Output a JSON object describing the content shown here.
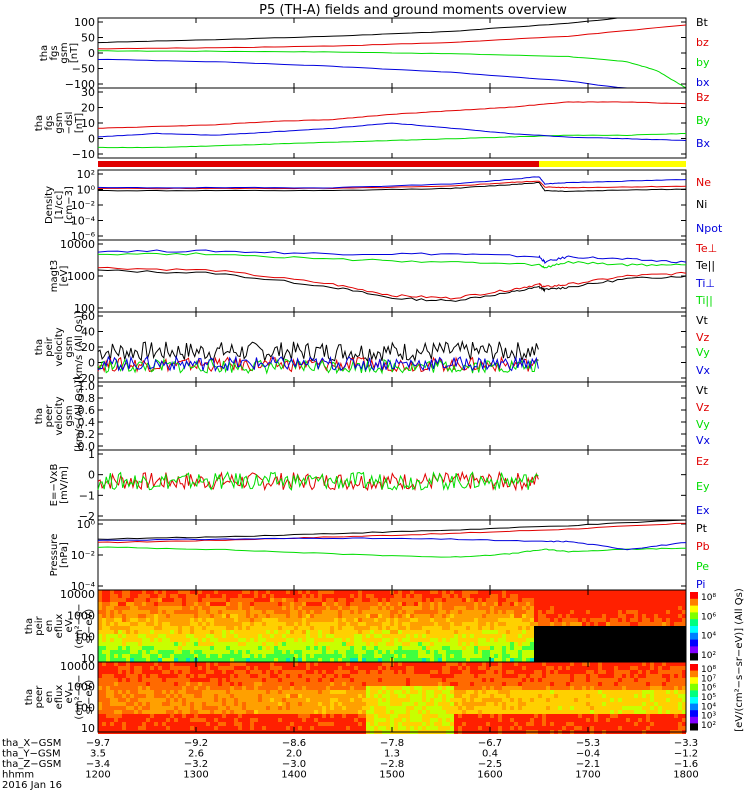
{
  "title": "P5 (TH-A) fields and ground moments overview",
  "colors": {
    "black": "#000000",
    "red": "#e00000",
    "green": "#00dd00",
    "blue": "#0000dd",
    "yellow": "#ffff00"
  },
  "chart_data": [
    {
      "type": "line",
      "panel": "fgs_gsm",
      "ylabel": [
        "tha",
        "fgs",
        "gsm",
        "[nT]"
      ],
      "yticks": [
        "100",
        "50",
        "0",
        "−50",
        "−100"
      ],
      "ylim": [
        -100,
        100
      ],
      "series": [
        {
          "name": "Bt",
          "color": "black",
          "x": [
            0,
            20,
            40,
            60,
            80,
            100
          ],
          "values": [
            30,
            38,
            48,
            62,
            85,
            120
          ]
        },
        {
          "name": "bz",
          "color": "red",
          "x": [
            0,
            20,
            40,
            60,
            80,
            100
          ],
          "values": [
            12,
            15,
            20,
            30,
            48,
            80
          ]
        },
        {
          "name": "by",
          "color": "green",
          "x": [
            0,
            20,
            40,
            60,
            80,
            90,
            95,
            100
          ],
          "values": [
            6,
            5,
            3,
            -2,
            -10,
            -25,
            -50,
            -100
          ]
        },
        {
          "name": "bx",
          "color": "blue",
          "x": [
            0,
            20,
            40,
            60,
            80,
            100
          ],
          "values": [
            -18,
            -25,
            -38,
            -55,
            -80,
            -125
          ]
        }
      ]
    },
    {
      "type": "line",
      "panel": "fgs_gsm_dsl",
      "ylabel": [
        "tha",
        "fgs",
        "gsm",
        "−dsl",
        "[nT]"
      ],
      "yticks": [
        "30",
        "20",
        "10",
        "0",
        "−10"
      ],
      "ylim": [
        -10,
        30
      ],
      "series": [
        {
          "name": "Bz",
          "color": "red",
          "x": [
            0,
            10,
            20,
            30,
            40,
            50,
            60,
            70,
            80,
            90,
            100
          ],
          "values": [
            7,
            8,
            9,
            11,
            12,
            15,
            17,
            19,
            22,
            22,
            21
          ]
        },
        {
          "name": "By",
          "color": "green",
          "x": [
            0,
            10,
            20,
            30,
            40,
            50,
            60,
            70,
            80,
            90,
            100
          ],
          "values": [
            -4,
            -4,
            -3,
            -2,
            -1,
            0,
            1,
            2,
            3,
            3,
            4
          ]
        },
        {
          "name": "Bx",
          "color": "blue",
          "x": [
            0,
            10,
            20,
            30,
            40,
            50,
            60,
            70,
            80,
            90,
            100
          ],
          "values": [
            2,
            4,
            3,
            5,
            7,
            10,
            7,
            4,
            2,
            1,
            0
          ]
        }
      ]
    },
    {
      "type": "line",
      "panel": "density",
      "ylabel": [
        "Density",
        "[1/cc]",
        "[cm−3]"
      ],
      "yticks": [
        "10²",
        "10⁰",
        "10⁻²",
        "10⁻⁴",
        "10⁻⁶"
      ],
      "yscale": "log",
      "ylim": [
        -7,
        2.5
      ],
      "series": [
        {
          "name": "Ne",
          "color": "red",
          "x": [
            0,
            20,
            40,
            60,
            70,
            75,
            76,
            80,
            90,
            100
          ],
          "values": [
            0,
            0,
            0,
            0.3,
            0.8,
            1.0,
            0.2,
            0.1,
            0.2,
            0.3
          ]
        },
        {
          "name": "Ni",
          "color": "black",
          "x": [
            0,
            20,
            40,
            60,
            70,
            75,
            76,
            80,
            90,
            100
          ],
          "values": [
            -0.3,
            -0.3,
            -0.3,
            0,
            0.5,
            0.8,
            -0.3,
            -0.4,
            -0.2,
            -0.1
          ]
        },
        {
          "name": "Npot",
          "color": "blue",
          "x": [
            0,
            20,
            40,
            60,
            70,
            75,
            76,
            80,
            90,
            100
          ],
          "values": [
            0.1,
            0.1,
            0.1,
            0.6,
            1.2,
            1.6,
            0.6,
            0.8,
            1.0,
            1.2
          ]
        }
      ]
    },
    {
      "type": "line",
      "panel": "temperature",
      "ylabel": [
        "magt3",
        "[eV]"
      ],
      "yticks": [
        "10000",
        "1000",
        "100"
      ],
      "yscale": "log",
      "ylim": [
        1.6,
        4.2
      ],
      "series": [
        {
          "name": "Te⊥",
          "color": "red",
          "x": [
            0,
            20,
            40,
            50,
            60,
            70,
            75,
            76,
            80,
            90,
            100
          ],
          "values": [
            3.2,
            3.1,
            2.6,
            2.2,
            2.1,
            2.4,
            2.6,
            2.5,
            2.6,
            2.9,
            3.0
          ]
        },
        {
          "name": "Te||",
          "color": "black",
          "x": [
            0,
            20,
            40,
            50,
            60,
            70,
            75,
            76,
            80,
            90,
            100
          ],
          "values": [
            3.1,
            3.0,
            2.5,
            2.1,
            2.0,
            2.3,
            2.5,
            2.4,
            2.5,
            2.8,
            2.9
          ]
        },
        {
          "name": "Ti⊥",
          "color": "blue",
          "x": [
            0,
            20,
            40,
            60,
            75,
            76,
            80,
            90,
            100
          ],
          "values": [
            3.8,
            3.8,
            3.7,
            3.7,
            3.6,
            3.4,
            3.6,
            3.5,
            3.4
          ]
        },
        {
          "name": "Ti||",
          "color": "green",
          "x": [
            0,
            20,
            40,
            60,
            75,
            76,
            80,
            90,
            100
          ],
          "values": [
            3.7,
            3.7,
            3.5,
            3.4,
            3.3,
            3.2,
            3.4,
            3.3,
            3.3
          ]
        }
      ]
    },
    {
      "type": "line",
      "panel": "peir_velocity",
      "ylabel": [
        "tha",
        "peir",
        "velocity",
        "gsm",
        "[km/s (All Qs)]"
      ],
      "yticks": [
        "60",
        "40",
        "20",
        "0",
        "−20"
      ],
      "ylim": [
        -20,
        60
      ],
      "series": [
        {
          "name": "Vt",
          "color": "black",
          "x": [
            0,
            75
          ],
          "values": [
            15,
            15
          ]
        },
        {
          "name": "Vz",
          "color": "red",
          "x": [
            0,
            75
          ],
          "values": [
            0,
            0
          ]
        },
        {
          "name": "Vy",
          "color": "green",
          "x": [
            0,
            75
          ],
          "values": [
            -2,
            -2
          ]
        },
        {
          "name": "Vx",
          "color": "blue",
          "x": [
            0,
            75
          ],
          "values": [
            1,
            1
          ]
        }
      ]
    },
    {
      "type": "line",
      "panel": "peer_velocity",
      "ylabel": [
        "tha",
        "peer",
        "velocity",
        "gsm",
        "[km/s (All Qs)]"
      ],
      "yticks": [
        "1.0",
        "0.8",
        "0.6",
        "0.4",
        "0.2",
        "0.0"
      ],
      "ylim": [
        0,
        1
      ],
      "series": [
        {
          "name": "Vt",
          "color": "black",
          "x": [],
          "values": []
        },
        {
          "name": "Vz",
          "color": "red",
          "x": [],
          "values": []
        },
        {
          "name": "Vy",
          "color": "green",
          "x": [],
          "values": []
        },
        {
          "name": "Vx",
          "color": "blue",
          "x": [],
          "values": []
        }
      ]
    },
    {
      "type": "line",
      "panel": "efield",
      "ylabel": [
        "E=−VxB",
        "[mV/m]"
      ],
      "yticks": [
        "1",
        "0",
        "−1",
        "−2"
      ],
      "ylim": [
        -2,
        1.6
      ],
      "series": [
        {
          "name": "Ez",
          "color": "red",
          "x": [
            0,
            75
          ],
          "values": [
            0,
            0
          ]
        },
        {
          "name": "Ey",
          "color": "green",
          "x": [
            0,
            75
          ],
          "values": [
            0,
            0
          ]
        },
        {
          "name": "Ex",
          "color": "blue",
          "x": [],
          "values": []
        }
      ]
    },
    {
      "type": "line",
      "panel": "pressure",
      "ylabel": [
        "Pressure",
        "[nPa]"
      ],
      "yticks": [
        "10⁰",
        "10⁻²",
        "10⁻⁴"
      ],
      "yscale": "log",
      "ylim": [
        -5.2,
        1
      ],
      "series": [
        {
          "name": "Pt",
          "color": "black",
          "x": [
            0,
            20,
            40,
            60,
            80,
            100
          ],
          "values": [
            -0.7,
            -0.5,
            -0.2,
            0.1,
            0.5,
            1.0
          ]
        },
        {
          "name": "Pb",
          "color": "red",
          "x": [
            0,
            20,
            40,
            60,
            80,
            100
          ],
          "values": [
            -1.0,
            -0.8,
            -0.5,
            -0.2,
            0.2,
            0.7
          ]
        },
        {
          "name": "Pe",
          "color": "green",
          "x": [
            0,
            20,
            40,
            60,
            70,
            76,
            80,
            90,
            100
          ],
          "values": [
            -1.4,
            -1.6,
            -2.0,
            -2.3,
            -2.0,
            -1.6,
            -1.8,
            -1.6,
            -1.5
          ]
        },
        {
          "name": "Pi",
          "color": "blue",
          "x": [
            0,
            20,
            40,
            60,
            75,
            80,
            90,
            100
          ],
          "values": [
            -0.8,
            -0.7,
            -0.6,
            -0.7,
            -0.9,
            -0.9,
            -1.6,
            -1.0
          ]
        }
      ]
    },
    {
      "type": "heatmap",
      "panel": "peir_spectrogram",
      "ylabel": [
        "tha",
        "peir",
        "en",
        "eflux",
        "eV",
        "(cm²−s−",
        "sr−eV)"
      ],
      "yticks": [
        "10000",
        "1000",
        "100",
        "10"
      ],
      "colorbar": "[eV/(cm²−s−sr−eV)] (All Qs)",
      "colorbar_ticks": [
        "10⁸",
        "10⁶",
        "10⁴",
        "10²"
      ]
    },
    {
      "type": "heatmap",
      "panel": "peer_spectrogram",
      "ylabel": [
        "tha",
        "peer",
        "en",
        "eflux",
        "eV",
        "(cm²−s−",
        "sr−eV)"
      ],
      "yticks": [
        "10000",
        "1000",
        "100",
        "10"
      ],
      "colorbar": "[eV/(cm²−s−sr−eV)] (All Qs)",
      "colorbar_ticks": [
        "10⁸",
        "10⁷",
        "10⁶",
        "10⁵",
        "10⁴",
        "10³",
        "10²"
      ]
    }
  ],
  "xaxis": {
    "rows": [
      {
        "label": "tha_X−GSM",
        "values": [
          "−9.7",
          "−9.2",
          "−8.6",
          "−7.8",
          "−6.7",
          "−5.3",
          "−3.3"
        ]
      },
      {
        "label": "tha_Y−GSM",
        "values": [
          "3.5",
          "2.6",
          "2.0",
          "1.3",
          "0.4",
          "−0.4",
          "−1.2"
        ]
      },
      {
        "label": "tha_Z−GSM",
        "values": [
          "−3.4",
          "−3.2",
          "−3.0",
          "−2.8",
          "−2.5",
          "−2.1",
          "−1.6"
        ]
      },
      {
        "label": "hhmm",
        "values": [
          "1200",
          "1300",
          "1400",
          "1500",
          "1600",
          "1700",
          "1800"
        ]
      }
    ],
    "date": "2016 Jan 16"
  }
}
